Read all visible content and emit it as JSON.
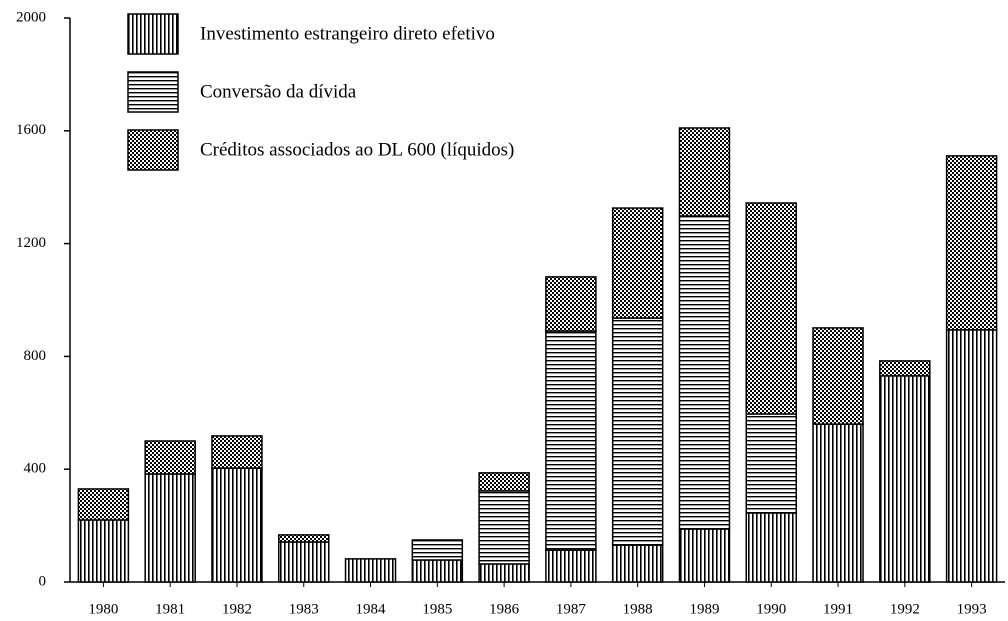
{
  "chart_data": {
    "type": "stacked_bar",
    "categories": [
      "1980",
      "1981",
      "1982",
      "1983",
      "1984",
      "1985",
      "1986",
      "1987",
      "1988",
      "1989",
      "1990",
      "1991",
      "1992",
      "1993"
    ],
    "series": [
      {
        "name": "Investimento estrangeiro direto efetivo",
        "color": "#000000",
        "pattern": "vertical",
        "values": [
          220,
          383,
          404,
          142,
          82,
          78,
          64,
          113,
          131,
          188,
          245,
          560,
          731,
          894
        ]
      },
      {
        "name": "Conversão da dívida",
        "color": "#000000",
        "pattern": "horizontal",
        "values": [
          0,
          0,
          0,
          0,
          0,
          71,
          259,
          777,
          805,
          1110,
          351,
          0,
          0,
          0
        ]
      },
      {
        "name": "Créditos associados ao DL 600 (líquidos)",
        "color": "#000000",
        "pattern": "crosshatch",
        "values": [
          110,
          117,
          114,
          25,
          0,
          0,
          64,
          192,
          390,
          312,
          748,
          341,
          53,
          617
        ]
      }
    ],
    "ylim": [
      0,
      2000
    ],
    "yticks": [
      0,
      400,
      800,
      1200,
      1600,
      2000
    ]
  }
}
